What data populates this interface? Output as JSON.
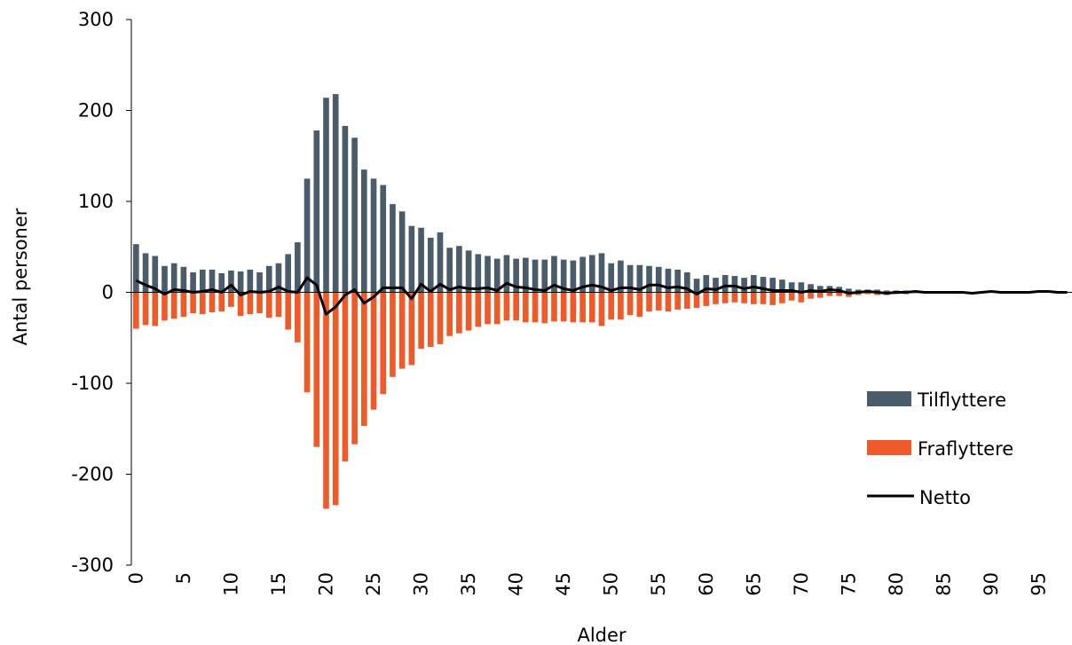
{
  "chart_data": {
    "type": "bar",
    "xlabel": "Alder",
    "ylabel": "Antal personer",
    "ylim": [
      -300,
      300
    ],
    "y_ticks": [
      "300",
      "200",
      "100",
      "0",
      "-100",
      "-200",
      "-300"
    ],
    "x_tick_labels": [
      "0",
      "5",
      "10",
      "15",
      "20",
      "25",
      "30",
      "35",
      "40",
      "45",
      "50",
      "55",
      "60",
      "65",
      "70",
      "75",
      "80",
      "85",
      "90",
      "95"
    ],
    "x": [
      0,
      1,
      2,
      3,
      4,
      5,
      6,
      7,
      8,
      9,
      10,
      11,
      12,
      13,
      14,
      15,
      16,
      17,
      18,
      19,
      20,
      21,
      22,
      23,
      24,
      25,
      26,
      27,
      28,
      29,
      30,
      31,
      32,
      33,
      34,
      35,
      36,
      37,
      38,
      39,
      40,
      41,
      42,
      43,
      44,
      45,
      46,
      47,
      48,
      49,
      50,
      51,
      52,
      53,
      54,
      55,
      56,
      57,
      58,
      59,
      60,
      61,
      62,
      63,
      64,
      65,
      66,
      67,
      68,
      69,
      70,
      71,
      72,
      73,
      74,
      75,
      76,
      77,
      78,
      79,
      80,
      81,
      82,
      83,
      84,
      85,
      86,
      87,
      88,
      89,
      90,
      91,
      92,
      93,
      94,
      95,
      96,
      97,
      98
    ],
    "legend_position": "lower-right",
    "series": [
      {
        "name": "Tilflyttere",
        "kind": "bar",
        "color": "#4a5c69",
        "values": [
          53,
          43,
          40,
          29,
          32,
          28,
          22,
          25,
          25,
          21,
          24,
          23,
          25,
          22,
          29,
          32,
          42,
          55,
          125,
          178,
          214,
          218,
          183,
          170,
          135,
          125,
          118,
          97,
          89,
          73,
          71,
          60,
          66,
          49,
          51,
          46,
          42,
          40,
          37,
          41,
          37,
          38,
          36,
          36,
          40,
          36,
          35,
          39,
          41,
          43,
          32,
          35,
          30,
          30,
          29,
          28,
          26,
          25,
          22,
          15,
          19,
          16,
          19,
          18,
          16,
          19,
          17,
          16,
          14,
          11,
          11,
          9,
          7,
          7,
          6,
          4,
          3,
          3,
          3,
          2,
          2,
          2,
          2,
          1,
          1,
          1,
          1,
          1,
          0,
          1,
          1,
          0,
          0,
          0,
          0,
          1,
          1,
          0,
          0
        ]
      },
      {
        "name": "Fraflyttere",
        "kind": "bar",
        "color": "#f05a28",
        "values": [
          -40,
          -36,
          -37,
          -31,
          -29,
          -27,
          -23,
          -24,
          -22,
          -21,
          -16,
          -26,
          -24,
          -23,
          -28,
          -27,
          -41,
          -55,
          -110,
          -170,
          -238,
          -234,
          -186,
          -167,
          -147,
          -129,
          -112,
          -93,
          -84,
          -80,
          -62,
          -60,
          -57,
          -48,
          -45,
          -42,
          -38,
          -35,
          -35,
          -31,
          -31,
          -33,
          -33,
          -34,
          -32,
          -32,
          -33,
          -33,
          -33,
          -37,
          -30,
          -30,
          -25,
          -27,
          -21,
          -20,
          -21,
          -19,
          -18,
          -17,
          -15,
          -13,
          -12,
          -11,
          -12,
          -13,
          -13,
          -14,
          -12,
          -9,
          -11,
          -7,
          -6,
          -4,
          -4,
          -5,
          -3,
          -2,
          -3,
          -3,
          -2,
          -2,
          -1,
          -1,
          -1,
          -1,
          -1,
          -1,
          -1,
          -1,
          0,
          0,
          0,
          0,
          0,
          0,
          0,
          0,
          0
        ]
      },
      {
        "name": "Netto",
        "kind": "line",
        "color": "#000000",
        "values": [
          13,
          8,
          4,
          -2,
          3,
          2,
          0,
          1,
          3,
          0,
          8,
          -3,
          1,
          0,
          1,
          6,
          1,
          0,
          16,
          8,
          -24,
          -16,
          -3,
          3,
          -12,
          -5,
          5,
          5,
          5,
          -7,
          9,
          1,
          9,
          3,
          6,
          4,
          4,
          5,
          2,
          10,
          6,
          5,
          3,
          2,
          8,
          4,
          2,
          6,
          8,
          6,
          2,
          5,
          5,
          3,
          8,
          8,
          5,
          6,
          4,
          -2,
          4,
          3,
          7,
          7,
          4,
          6,
          4,
          2,
          2,
          2,
          0,
          2,
          1,
          3,
          2,
          -1,
          0,
          1,
          0,
          -1,
          0,
          0,
          1,
          0,
          0,
          0,
          0,
          0,
          -1,
          0,
          1,
          0,
          0,
          0,
          0,
          1,
          1,
          0,
          0
        ]
      }
    ]
  }
}
